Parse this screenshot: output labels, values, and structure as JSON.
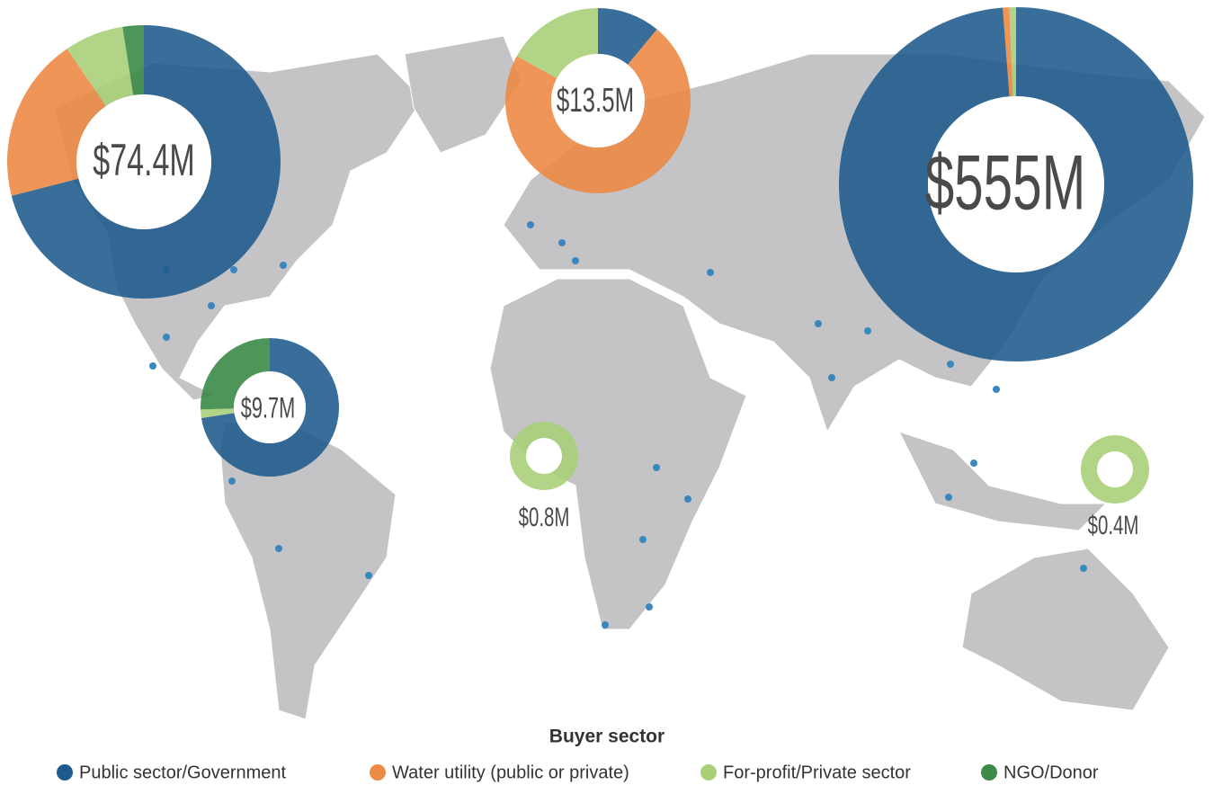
{
  "legend": {
    "title": "Buyer sector",
    "items": [
      {
        "label": "Public sector/Government",
        "color": "#1f5a8c"
      },
      {
        "label": "Water utility (public or private)",
        "color": "#ec8a45"
      },
      {
        "label": "For-profit/Private sector",
        "color": "#a9cf79"
      },
      {
        "label": "NGO/Donor",
        "color": "#3b8a47"
      }
    ]
  },
  "donuts": [
    {
      "label": "$74.4M",
      "shares": [
        71,
        19.5,
        7,
        2.5
      ]
    },
    {
      "label": "$13.5M",
      "shares": [
        11,
        72,
        17,
        0
      ]
    },
    {
      "label": "$555M",
      "shares": [
        98.8,
        0.6,
        0.6,
        0
      ]
    },
    {
      "label": "$9.7M",
      "shares": [
        72.5,
        0,
        2,
        25.5
      ]
    },
    {
      "label": "$0.8M",
      "shares": [
        0,
        0,
        100,
        0
      ]
    },
    {
      "label": "$0.4M",
      "shares": [
        0,
        0,
        100,
        0
      ]
    }
  ]
}
